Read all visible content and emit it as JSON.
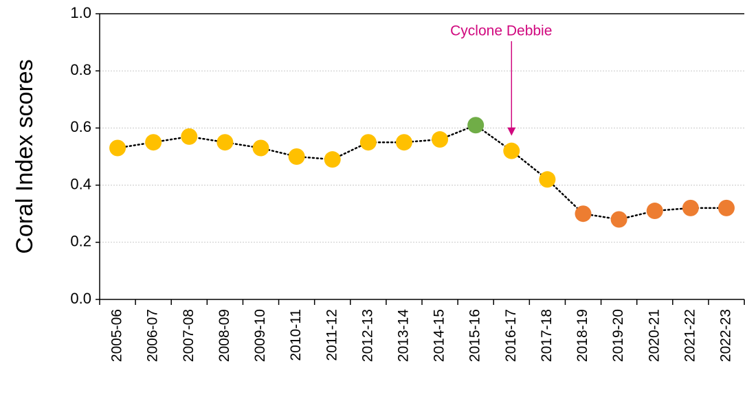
{
  "chart_data": {
    "type": "line",
    "y_label": "Coral Index scores",
    "categories": [
      "2005-06",
      "2006-07",
      "2007-08",
      "2008-09",
      "2009-10",
      "2010-11",
      "2011-12",
      "2012-13",
      "2013-14",
      "2014-15",
      "2015-16",
      "2016-17",
      "2017-18",
      "2018-19",
      "2019-20",
      "2020-21",
      "2021-22",
      "2022-23"
    ],
    "values": [
      0.53,
      0.55,
      0.57,
      0.55,
      0.53,
      0.5,
      0.49,
      0.55,
      0.55,
      0.56,
      0.61,
      0.52,
      0.42,
      0.3,
      0.28,
      0.31,
      0.32,
      0.32
    ],
    "point_colors": [
      "#ffc000",
      "#ffc000",
      "#ffc000",
      "#ffc000",
      "#ffc000",
      "#ffc000",
      "#ffc000",
      "#ffc000",
      "#ffc000",
      "#ffc000",
      "#70ad47",
      "#ffc000",
      "#ffc000",
      "#ed7d31",
      "#ed7d31",
      "#ed7d31",
      "#ed7d31",
      "#ed7d31"
    ],
    "line_color": "#000000",
    "ylim": [
      0,
      1
    ],
    "yticks": [
      {
        "value": 0,
        "label": "0.0"
      },
      0.2,
      0.4,
      0.6,
      0.8,
      {
        "value": 1,
        "label": "1.0"
      }
    ],
    "grid": true,
    "annotations": [
      {
        "text": "Cyclone Debbie",
        "x": "2016-17",
        "color": "#d0087e"
      }
    ]
  }
}
